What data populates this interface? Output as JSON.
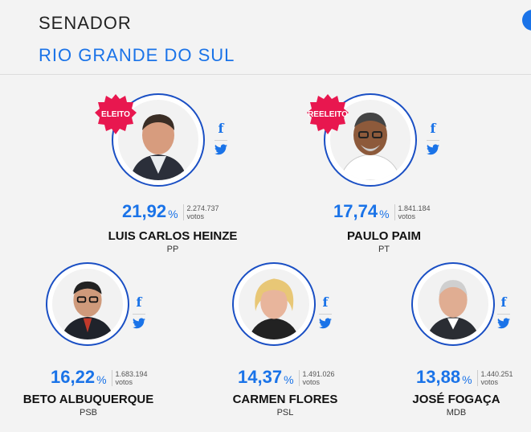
{
  "header": {
    "title": "SENADOR",
    "subtitle": "RIO GRANDE DO SUL"
  },
  "candidates": [
    {
      "name": "LUIS CARLOS HEINZE",
      "party": "PP",
      "percent": "21,92",
      "percent_sign": "%",
      "votes": "2.274.737",
      "votes_label": "votos",
      "badge": "ELEITO"
    },
    {
      "name": "PAULO PAIM",
      "party": "PT",
      "percent": "17,74",
      "percent_sign": "%",
      "votes": "1.841.184",
      "votes_label": "votos",
      "badge": "REELEITO"
    },
    {
      "name": "BETO ALBUQUERQUE",
      "party": "PSB",
      "percent": "16,22",
      "percent_sign": "%",
      "votes": "1.683.194",
      "votes_label": "votos"
    },
    {
      "name": "CARMEN FLORES",
      "party": "PSL",
      "percent": "14,37",
      "percent_sign": "%",
      "votes": "1.491.026",
      "votes_label": "votos"
    },
    {
      "name": "JOSÉ FOGAÇA",
      "party": "MDB",
      "percent": "13,88",
      "percent_sign": "%",
      "votes": "1.440.251",
      "votes_label": "votos"
    }
  ],
  "social": {
    "facebook_glyph": "f"
  },
  "colors": {
    "accent": "#1a73e8",
    "badge": "#e8174f",
    "ring": "#1a4fc4"
  }
}
